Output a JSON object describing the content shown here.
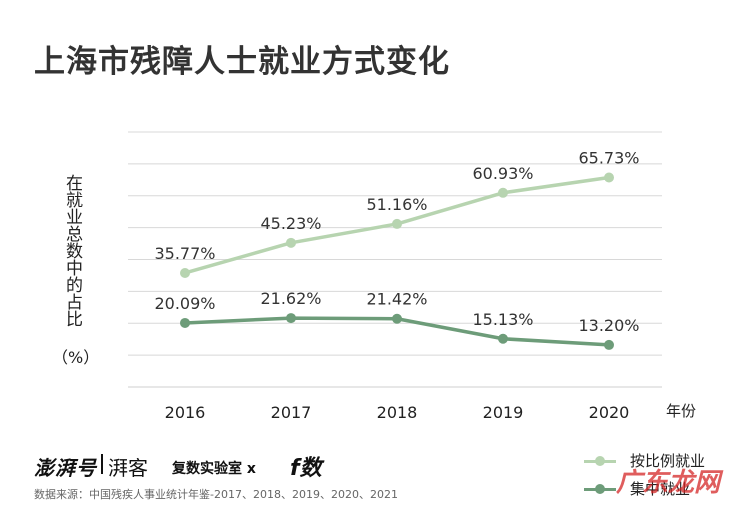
{
  "page": {
    "title": "上海市残障人士就业方式变化",
    "y_axis_label": "在就业总数中的占比",
    "y_axis_unit": "（%）",
    "x_axis_unit": "年份",
    "source": "数据来源：中国残疾人事业统计年鉴-2017、2018、2019、2020、2021",
    "brands": [
      "澎湃号",
      "湃客",
      "复数实验室 x",
      "f数"
    ],
    "watermark": "广东龙网"
  },
  "chart_data": {
    "type": "line",
    "title": "上海市残障人士就业方式变化",
    "xlabel": "年份",
    "ylabel": "在就业总数中的占比（%）",
    "categories": [
      "2016",
      "2017",
      "2018",
      "2019",
      "2020"
    ],
    "ylim": [
      0,
      80
    ],
    "grid": true,
    "legend_position": "bottom-right",
    "series": [
      {
        "name": "按比例就业",
        "color": "#b7d4b0",
        "values": [
          35.77,
          45.23,
          51.16,
          60.93,
          65.73
        ],
        "labels": [
          "35.77%",
          "45.23%",
          "51.16%",
          "60.93%",
          "65.73%"
        ]
      },
      {
        "name": "集中就业",
        "color": "#6d9c79",
        "values": [
          20.09,
          21.62,
          21.42,
          15.13,
          13.2
        ],
        "labels": [
          "20.09%",
          "21.62%",
          "21.42%",
          "15.13%",
          "13.20%"
        ]
      }
    ]
  }
}
